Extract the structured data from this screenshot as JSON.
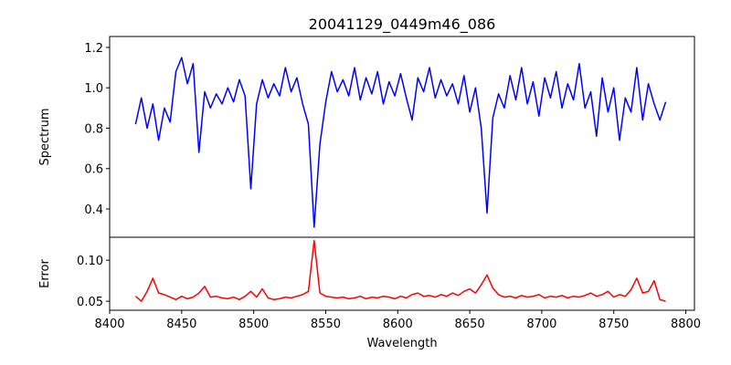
{
  "chart_data": [
    {
      "type": "line",
      "title": "20041129_0449m46_086",
      "xlabel": "",
      "ylabel": "Spectrum",
      "xlim": [
        8400,
        8806
      ],
      "ylim": [
        0.26,
        1.254
      ],
      "yticks": [
        "0.4",
        "0.6",
        "0.8",
        "1.0",
        "1.2"
      ],
      "color": "#0000ff",
      "x_start": 8418,
      "x_step": 4,
      "values": [
        0.82,
        0.95,
        0.8,
        0.92,
        0.74,
        0.9,
        0.83,
        1.08,
        1.15,
        1.02,
        1.12,
        0.68,
        0.98,
        0.9,
        0.97,
        0.92,
        1.0,
        0.93,
        1.04,
        0.96,
        0.5,
        0.92,
        1.04,
        0.95,
        1.02,
        0.96,
        1.1,
        0.98,
        1.05,
        0.92,
        0.82,
        0.31,
        0.72,
        0.93,
        1.08,
        0.98,
        1.04,
        0.96,
        1.1,
        0.94,
        1.05,
        0.97,
        1.08,
        0.92,
        1.03,
        0.96,
        1.07,
        0.95,
        0.84,
        1.05,
        0.98,
        1.1,
        0.95,
        1.04,
        0.96,
        1.02,
        0.92,
        1.06,
        0.88,
        1.0,
        0.8,
        0.38,
        0.85,
        0.97,
        0.9,
        1.06,
        0.94,
        1.1,
        0.92,
        1.03,
        0.86,
        1.05,
        0.95,
        1.08,
        0.9,
        1.02,
        0.94,
        1.12,
        0.9,
        0.98,
        0.76,
        1.05,
        0.88,
        1.0,
        0.74,
        0.95,
        0.88,
        1.1,
        0.84,
        1.02,
        0.92,
        0.84,
        0.93
      ]
    },
    {
      "type": "line",
      "xlabel": "Wavelength",
      "ylabel": "Error",
      "xlim": [
        8400,
        8806
      ],
      "ylim": [
        0.039,
        0.128
      ],
      "xticks": [
        "8400",
        "8450",
        "8500",
        "8550",
        "8600",
        "8650",
        "8700",
        "8750",
        "8800"
      ],
      "yticks": [
        "0.05",
        "0.10"
      ],
      "color": "#ff0000",
      "x_start": 8418,
      "x_step": 4,
      "values": [
        0.056,
        0.05,
        0.062,
        0.078,
        0.06,
        0.058,
        0.055,
        0.052,
        0.056,
        0.053,
        0.055,
        0.06,
        0.068,
        0.055,
        0.056,
        0.054,
        0.053,
        0.055,
        0.052,
        0.056,
        0.062,
        0.055,
        0.065,
        0.054,
        0.052,
        0.053,
        0.055,
        0.054,
        0.056,
        0.058,
        0.062,
        0.124,
        0.06,
        0.056,
        0.055,
        0.054,
        0.055,
        0.053,
        0.054,
        0.056,
        0.053,
        0.055,
        0.054,
        0.056,
        0.055,
        0.053,
        0.056,
        0.054,
        0.058,
        0.06,
        0.056,
        0.057,
        0.055,
        0.058,
        0.056,
        0.06,
        0.057,
        0.062,
        0.065,
        0.06,
        0.07,
        0.082,
        0.066,
        0.058,
        0.055,
        0.056,
        0.054,
        0.057,
        0.055,
        0.056,
        0.058,
        0.054,
        0.056,
        0.055,
        0.057,
        0.054,
        0.056,
        0.055,
        0.057,
        0.06,
        0.056,
        0.058,
        0.062,
        0.055,
        0.058,
        0.056,
        0.064,
        0.078,
        0.06,
        0.062,
        0.075,
        0.052,
        0.05
      ]
    }
  ]
}
